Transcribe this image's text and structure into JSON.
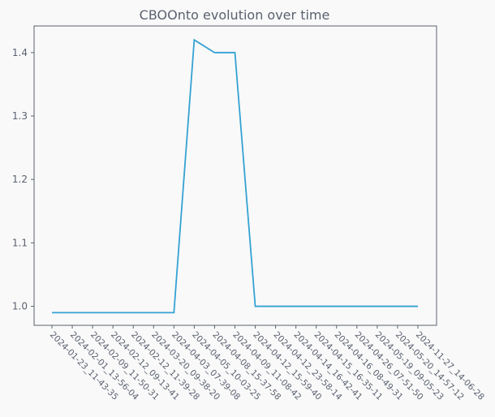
{
  "chart_data": {
    "type": "line",
    "title": "CBOOnto evolution over time",
    "xlabel": "",
    "ylabel": "",
    "grid": false,
    "categories": [
      "2024-01-23_11-43-35",
      "2024-02-01_13-56-04",
      "2024-02-09_11-50-31",
      "2024-02-12_09-13-41",
      "2024-02-12_11-39-28",
      "2024-03-20_09-38-20",
      "2024-04-03_07-39-08",
      "2024-04-05_10-03-25",
      "2024-04-08_15-37-58",
      "2024-04-09_11-08-42",
      "2024-04-12_15-59-40",
      "2024-04-12_23-58-14",
      "2024-04-14_16-42-41",
      "2024-04-15_16-35-11",
      "2024-04-16_08-49-31",
      "2024-04-26_07-51-50",
      "2024-05-19_09-05-23",
      "2024-05-20_14-57-12",
      "2024-11-27_14-06-28"
    ],
    "values": [
      0.99,
      0.99,
      0.99,
      0.99,
      0.99,
      0.99,
      0.99,
      1.42,
      1.4,
      1.4,
      1.0,
      1.0,
      1.0,
      1.0,
      1.0,
      1.0,
      1.0,
      1.0,
      1.0
    ],
    "ylim": [
      0.97,
      1.442
    ],
    "yticks": [
      1.0,
      1.1,
      1.2,
      1.3,
      1.4
    ],
    "yticks_labels": [
      "1.0",
      "1.1",
      "1.2",
      "1.3",
      "1.4"
    ],
    "line_color": "#34a2d4"
  }
}
